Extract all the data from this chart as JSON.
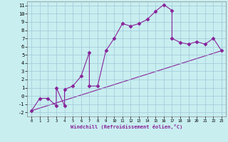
{
  "xlabel": "Windchill (Refroidissement éolien,°C)",
  "background_color": "#c8eef0",
  "grid_color": "#a0c8d8",
  "line_color": "#882299",
  "xlim": [
    -0.5,
    23.5
  ],
  "ylim": [
    -2.5,
    11.5
  ],
  "xticks": [
    0,
    1,
    2,
    3,
    4,
    5,
    6,
    7,
    8,
    9,
    10,
    11,
    12,
    13,
    14,
    15,
    16,
    17,
    18,
    19,
    20,
    21,
    22,
    23
  ],
  "yticks": [
    -2,
    -1,
    0,
    1,
    2,
    3,
    4,
    5,
    6,
    7,
    8,
    9,
    10,
    11
  ],
  "line1_x": [
    0,
    1,
    2,
    3,
    3,
    4,
    4,
    5,
    6,
    7,
    7,
    8,
    9,
    10,
    11,
    12,
    13,
    14,
    15,
    16,
    17,
    17,
    18,
    19,
    20,
    21,
    22,
    23
  ],
  "line1_y": [
    -1.8,
    -0.3,
    -0.3,
    -1.2,
    1.0,
    -1.2,
    0.8,
    1.2,
    2.4,
    5.3,
    1.2,
    1.2,
    5.5,
    7.0,
    8.8,
    8.5,
    8.8,
    9.3,
    10.3,
    11.1,
    10.4,
    7.0,
    6.5,
    6.3,
    6.6,
    6.3,
    7.0,
    5.5
  ],
  "line2_x": [
    0,
    23
  ],
  "line2_y": [
    -1.8,
    5.5
  ],
  "marker": "D",
  "markersize": 2.5,
  "linewidth": 0.8
}
